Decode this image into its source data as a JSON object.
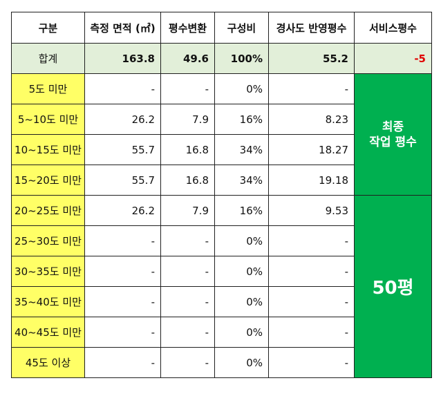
{
  "headers": {
    "category": "구분",
    "area": "측정 면적 (㎡)",
    "pyeong": "평수변환",
    "ratio": "구성비",
    "slope": "경사도 반영평수",
    "service": "서비스평수"
  },
  "total": {
    "label": "합계",
    "area": "163.8",
    "pyeong": "49.6",
    "ratio": "100%",
    "slope": "55.2",
    "service": "-5"
  },
  "rows": [
    {
      "category": "5도 미만",
      "area": "-",
      "pyeong": "-",
      "ratio": "0%",
      "slope": "-"
    },
    {
      "category": "5~10도 미만",
      "area": "26.2",
      "pyeong": "7.9",
      "ratio": "16%",
      "slope": "8.23"
    },
    {
      "category": "10~15도 미만",
      "area": "55.7",
      "pyeong": "16.8",
      "ratio": "34%",
      "slope": "18.27"
    },
    {
      "category": "15~20도 미만",
      "area": "55.7",
      "pyeong": "16.8",
      "ratio": "34%",
      "slope": "19.18"
    },
    {
      "category": "20~25도 미만",
      "area": "26.2",
      "pyeong": "7.9",
      "ratio": "16%",
      "slope": "9.53"
    },
    {
      "category": "25~30도 미만",
      "area": "-",
      "pyeong": "-",
      "ratio": "0%",
      "slope": "-"
    },
    {
      "category": "30~35도 미만",
      "area": "-",
      "pyeong": "-",
      "ratio": "0%",
      "slope": "-"
    },
    {
      "category": "35~40도 미만",
      "area": "-",
      "pyeong": "-",
      "ratio": "0%",
      "slope": "-"
    },
    {
      "category": "40~45도 미만",
      "area": "-",
      "pyeong": "-",
      "ratio": "0%",
      "slope": "-"
    },
    {
      "category": "45도 이상",
      "area": "-",
      "pyeong": "-",
      "ratio": "0%",
      "slope": "-"
    }
  ],
  "merged": {
    "final_line1": "최종",
    "final_line2": "작업 평수",
    "fifty": "50평"
  },
  "colors": {
    "header_bg": "#ffffff",
    "total_bg": "#e2efd9",
    "category_bg": "#ffff66",
    "merged_bg": "#00b050",
    "service_total_text": "#e00000"
  }
}
